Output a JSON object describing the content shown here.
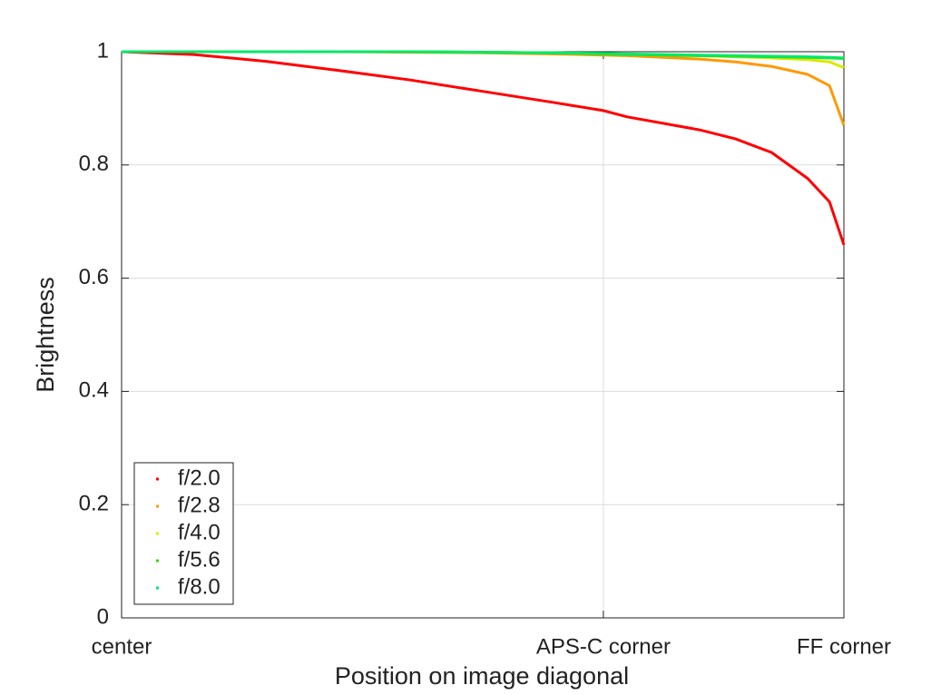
{
  "chart_data": {
    "type": "line",
    "xlabel": "Position on image diagonal",
    "ylabel": "Brightness",
    "x": [
      0,
      0.1,
      0.2,
      0.3,
      0.4,
      0.5,
      0.6,
      0.667,
      0.7,
      0.8,
      0.85,
      0.9,
      0.95,
      0.98,
      1
    ],
    "xlim": [
      0,
      1
    ],
    "xticks": [
      {
        "value": 0,
        "label": "center"
      },
      {
        "value": 0.667,
        "label": "APS-C corner"
      },
      {
        "value": 1,
        "label": "FF corner"
      }
    ],
    "ylim": [
      0,
      1
    ],
    "yticks": [
      0,
      0.2,
      0.4,
      0.6,
      0.8,
      1
    ],
    "grid": true,
    "legend": "lower left",
    "series": [
      {
        "name": "f/2.0",
        "color": "#ff0000",
        "values": [
          1,
          0.995,
          0.983,
          0.967,
          0.95,
          0.93,
          0.91,
          0.896,
          0.885,
          0.862,
          0.846,
          0.822,
          0.776,
          0.735,
          0.659
        ]
      },
      {
        "name": "f/2.8",
        "color": "#ff9900",
        "values": [
          1,
          1,
          1,
          1,
          0.999,
          0.998,
          0.996,
          0.994,
          0.993,
          0.987,
          0.982,
          0.974,
          0.96,
          0.94,
          0.87
        ]
      },
      {
        "name": "f/4.0",
        "color": "#dde800",
        "values": [
          1,
          1,
          1,
          1,
          1,
          0.999,
          0.998,
          0.996,
          0.995,
          0.993,
          0.991,
          0.989,
          0.986,
          0.982,
          0.972
        ]
      },
      {
        "name": "f/5.6",
        "color": "#33dd00",
        "values": [
          1,
          1,
          1,
          1,
          1,
          0.999,
          0.998,
          0.996,
          0.995,
          0.993,
          0.992,
          0.991,
          0.99,
          0.989,
          0.988
        ]
      },
      {
        "name": "f/8.0",
        "color": "#00e86a",
        "values": [
          1,
          1,
          1,
          1,
          1,
          0.999,
          0.998,
          0.997,
          0.996,
          0.994,
          0.993,
          0.992,
          0.991,
          0.99,
          0.989
        ]
      }
    ]
  }
}
